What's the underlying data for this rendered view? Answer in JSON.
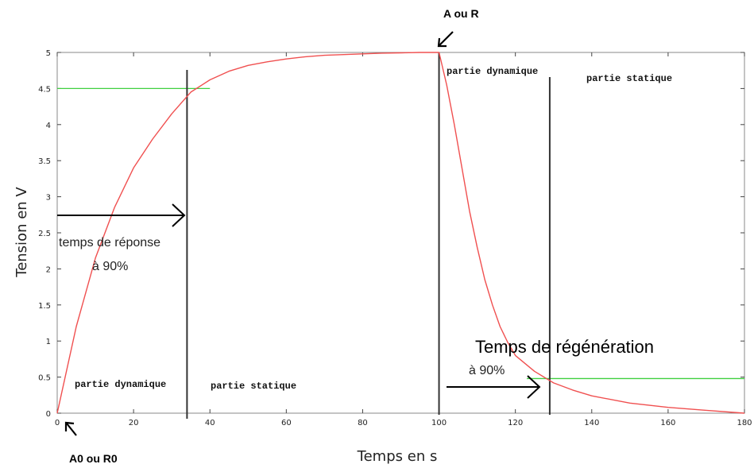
{
  "chart_data": {
    "type": "line",
    "xlabel": "Temps en s",
    "ylabel": "Tension en V",
    "xlim": [
      0,
      180
    ],
    "ylim": [
      0,
      5
    ],
    "x_ticks": [
      0,
      20,
      40,
      60,
      80,
      100,
      120,
      140,
      160,
      180
    ],
    "y_ticks": [
      0,
      0.5,
      1,
      1.5,
      2,
      2.5,
      3,
      3.5,
      4,
      4.5,
      5
    ],
    "grid": false,
    "series": [
      {
        "color": "#f05050",
        "x": [
          0,
          5,
          10,
          15,
          20,
          25,
          30,
          35,
          40,
          45,
          50,
          55,
          60,
          65,
          70,
          75,
          80,
          85,
          90,
          95,
          100,
          102,
          104,
          106,
          108,
          110,
          112,
          114,
          116,
          118,
          120,
          125,
          130,
          135,
          140,
          150,
          160,
          170,
          180
        ],
        "y": [
          0,
          1.2,
          2.15,
          2.85,
          3.4,
          3.8,
          4.15,
          4.45,
          4.62,
          4.74,
          4.82,
          4.87,
          4.91,
          4.94,
          4.96,
          4.97,
          4.98,
          4.99,
          4.995,
          5.0,
          5.0,
          4.55,
          4.0,
          3.4,
          2.8,
          2.3,
          1.85,
          1.5,
          1.2,
          0.98,
          0.8,
          0.58,
          0.42,
          0.32,
          0.24,
          0.14,
          0.08,
          0.04,
          0.0
        ]
      }
    ],
    "reference_lines": {
      "color": "#40d040",
      "upper": {
        "y": 4.5,
        "x_range": [
          0,
          40
        ]
      },
      "lower": {
        "y": 0.48,
        "x_range": [
          123,
          180
        ]
      }
    },
    "vertical_lines": [
      34,
      100,
      129
    ],
    "annotations": {
      "top_point": "A ou R",
      "origin_point": "A0 ou R0",
      "response_time": [
        "temps de réponse",
        "à 90%"
      ],
      "regen_time": [
        "Temps de régénération",
        "à 90%"
      ],
      "zones_rise": [
        "partie dynamique",
        "partie statique"
      ],
      "zones_fall": [
        "partie dynamique",
        "partie statique"
      ]
    }
  }
}
